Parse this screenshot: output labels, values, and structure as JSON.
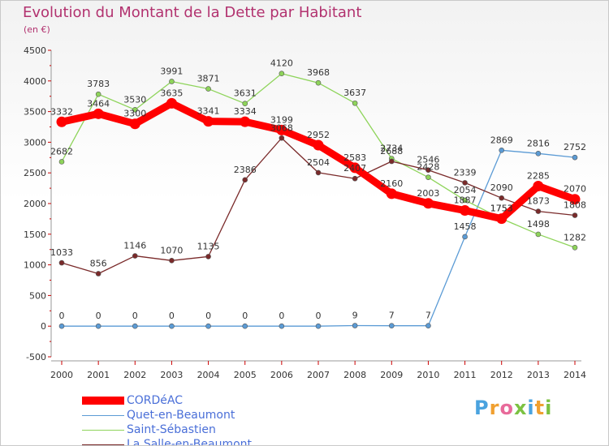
{
  "header": {
    "title": "Evolution du Montant de la Dette par Habitant",
    "unit": "(en €)"
  },
  "logo": {
    "text": "Proxiti",
    "letters": [
      "P",
      "r",
      "o",
      "x",
      "i",
      "t",
      "i"
    ]
  },
  "chart_data": {
    "type": "line",
    "title": "Evolution du Montant de la Dette par Habitant",
    "ylabel": "(en €)",
    "xlabel": "",
    "x": [
      "2000",
      "2001",
      "2002",
      "2003",
      "2004",
      "2005",
      "2006",
      "2007",
      "2008",
      "2009",
      "2010",
      "2011",
      "2012",
      "2013",
      "2014"
    ],
    "ylim": [
      -500,
      4500
    ],
    "yticks": [
      -500,
      0,
      500,
      1000,
      1500,
      2000,
      2500,
      3000,
      3500,
      4000,
      4500
    ],
    "grid": false,
    "legend_position": "bottom-left",
    "series": [
      {
        "name": "CORDéAC",
        "color": "#ff0000",
        "values": [
          3332,
          3464,
          3300,
          3635,
          3341,
          3334,
          3199,
          2952,
          2583,
          2160,
          2003,
          1887,
          1753,
          2285,
          2070
        ]
      },
      {
        "name": "Quet-en-Beaumont",
        "color": "#5b9bd5",
        "values": [
          0,
          0,
          0,
          0,
          0,
          0,
          0,
          0,
          9,
          7,
          7,
          1458,
          2869,
          2816,
          2752
        ]
      },
      {
        "name": "Saint-Sébastien",
        "color": "#8ed45a",
        "values": [
          2682,
          3783,
          3530,
          3991,
          3871,
          3631,
          4120,
          3968,
          3637,
          2734,
          2428,
          2054,
          1753,
          1498,
          1282
        ]
      },
      {
        "name": "La Salle-en-Beaumont",
        "color": "#7a2a2a",
        "values": [
          1033,
          856,
          1146,
          1070,
          1135,
          2386,
          3068,
          2504,
          2407,
          2688,
          2546,
          2339,
          2090,
          1873,
          1808
        ]
      }
    ]
  }
}
